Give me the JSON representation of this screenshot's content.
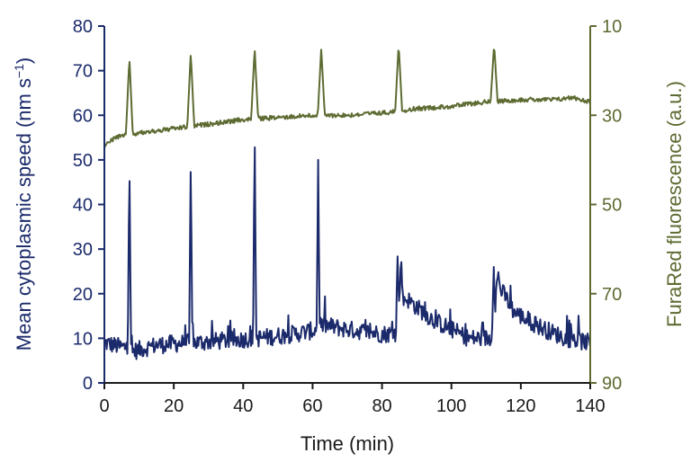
{
  "chart_data": {
    "type": "line",
    "xlabel": "Time (min)",
    "xlim": [
      0,
      140
    ],
    "xticks": [
      0,
      20,
      40,
      60,
      80,
      100,
      120,
      140
    ],
    "y_left": {
      "label_main": "Mean cytoplasmic speed (nm s",
      "label_sup": "−1",
      "label_end": ")",
      "lim": [
        0,
        80
      ],
      "ticks": [
        0,
        10,
        20,
        30,
        40,
        50,
        60,
        70,
        80
      ],
      "color": "#1b2a6b"
    },
    "y_right": {
      "label": "FuraRed fluorescence (a.u.)",
      "lim": [
        90,
        10
      ],
      "inverted": true,
      "ticks": [
        10,
        30,
        50,
        70,
        90
      ],
      "color": "#5d6b32"
    },
    "series": [
      {
        "axis": "left",
        "color": "#1b2a6b",
        "baseline": [
          [
            0,
            9
          ],
          [
            5,
            8
          ],
          [
            7,
            8
          ],
          [
            8,
            7
          ],
          [
            15,
            8.5
          ],
          [
            24,
            9
          ],
          [
            26,
            9
          ],
          [
            35,
            9.5
          ],
          [
            43,
            10
          ],
          [
            44,
            10
          ],
          [
            55,
            11
          ],
          [
            62,
            12
          ],
          [
            63,
            13
          ],
          [
            70,
            12
          ],
          [
            80,
            11
          ],
          [
            84,
            11
          ],
          [
            85,
            18
          ],
          [
            87,
            19
          ],
          [
            90,
            17
          ],
          [
            95,
            14
          ],
          [
            100,
            12
          ],
          [
            105,
            10
          ],
          [
            110,
            10
          ],
          [
            112,
            10
          ],
          [
            113,
            22
          ],
          [
            115,
            20
          ],
          [
            118,
            16
          ],
          [
            122,
            14
          ],
          [
            127,
            12
          ],
          [
            133,
            10
          ],
          [
            140,
            9
          ]
        ],
        "spikes": [
          [
            7.2,
            51
          ],
          [
            24.9,
            51
          ],
          [
            43.3,
            57
          ],
          [
            61.6,
            50
          ],
          [
            84.5,
            29
          ],
          [
            85.5,
            29
          ],
          [
            112.2,
            26
          ],
          [
            113.5,
            25
          ]
        ]
      },
      {
        "axis": "right",
        "color": "#5d6b32",
        "baseline": [
          [
            0,
            37
          ],
          [
            3,
            35
          ],
          [
            10,
            34
          ],
          [
            20,
            33
          ],
          [
            30,
            32
          ],
          [
            40,
            31
          ],
          [
            50,
            30.5
          ],
          [
            60,
            30
          ],
          [
            70,
            30
          ],
          [
            80,
            29.5
          ],
          [
            90,
            28.5
          ],
          [
            100,
            28
          ],
          [
            110,
            27
          ],
          [
            120,
            26.5
          ],
          [
            130,
            26.5
          ],
          [
            135,
            26
          ],
          [
            140,
            27
          ]
        ],
        "spikes": [
          [
            7.2,
            17
          ],
          [
            24.9,
            16
          ],
          [
            43.3,
            15
          ],
          [
            62.5,
            15
          ],
          [
            84.8,
            14
          ],
          [
            112.3,
            14
          ]
        ]
      }
    ]
  }
}
